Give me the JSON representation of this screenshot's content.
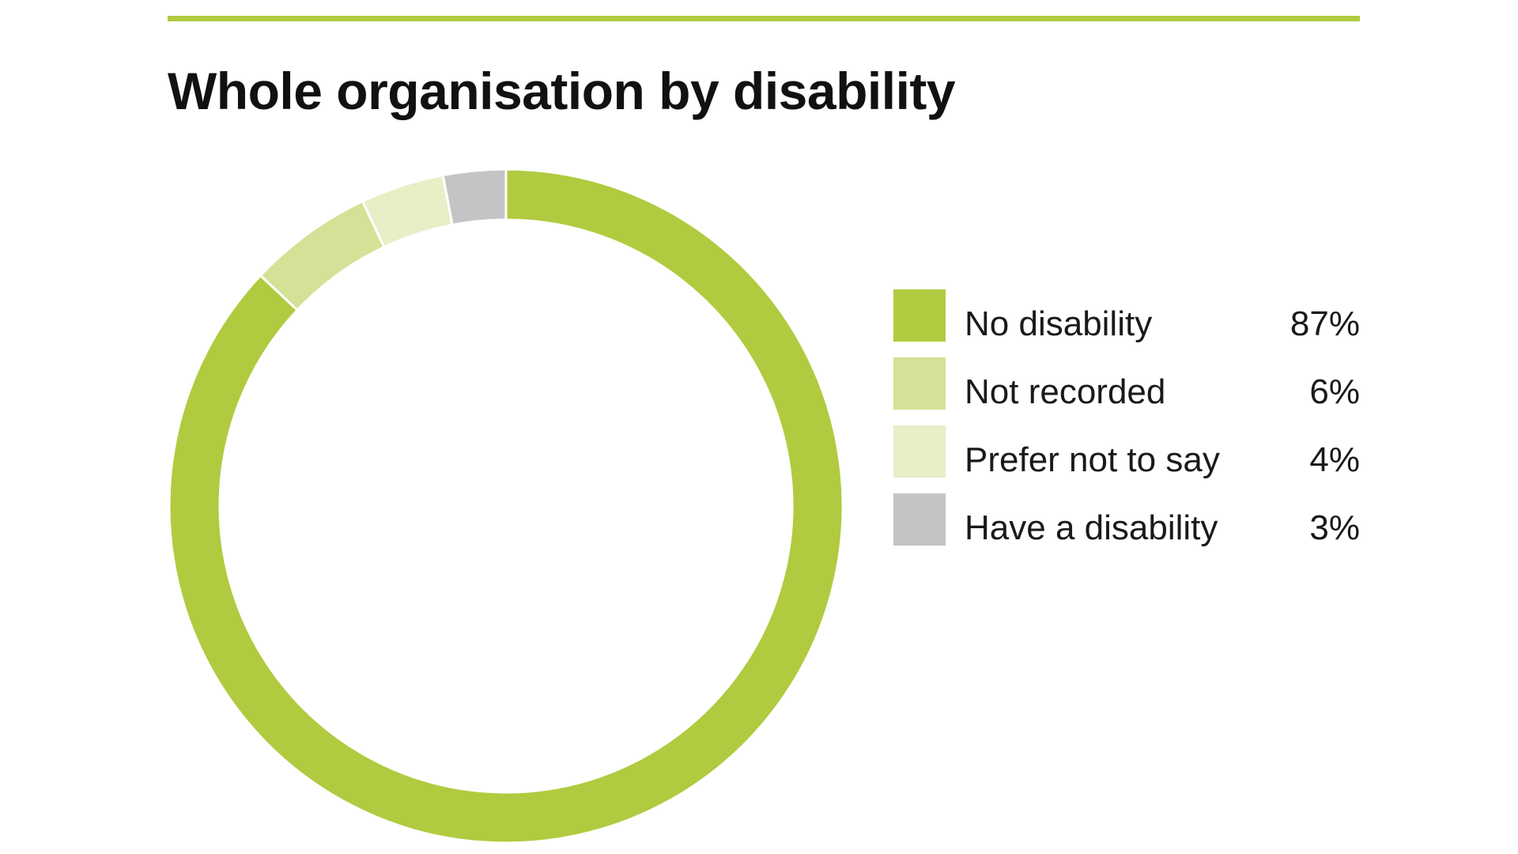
{
  "accent_color": "#b0cb3f",
  "chart_data": {
    "type": "pie",
    "style": "donut",
    "title": "Whole organisation by disability",
    "categories": [
      "No disability",
      "Not recorded",
      "Prefer not to say",
      "Have a disability"
    ],
    "values": [
      87,
      6,
      4,
      3
    ],
    "value_labels": [
      "87%",
      "6%",
      "4%",
      "3%"
    ],
    "unit": "%",
    "colors": [
      "#b0cb3f",
      "#d3e296",
      "#e6efc6",
      "#c4c4c4"
    ],
    "start": "top",
    "direction": "clockwise",
    "legend_placement": "right"
  }
}
